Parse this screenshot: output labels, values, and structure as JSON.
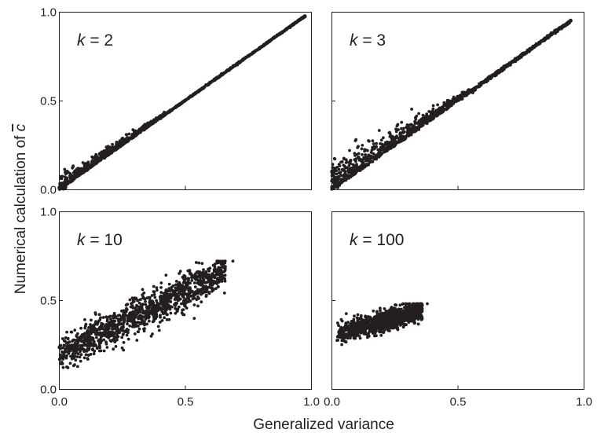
{
  "chart_data": {
    "type": "scatter",
    "layout": "2x2 panels, shared axes",
    "xlabel": "Generalized variance",
    "ylabel": "Numerical calculation of ",
    "ylabel_symbol": "c",
    "ylabel_symbol_overline": true,
    "xlim": [
      0,
      1
    ],
    "ylim": [
      0,
      1
    ],
    "xticks": [
      "0.0",
      "0.5",
      "1.0"
    ],
    "yticks": [
      "0.0",
      "0.5",
      "1.0"
    ],
    "grid": false,
    "marker_color": "#231f20",
    "panels": [
      {
        "label_var": "k",
        "label_rest": " = 2",
        "row": 0,
        "col": 0,
        "x_range": [
          0.0,
          0.98
        ],
        "y_range": [
          0.0,
          0.98
        ],
        "relation": "points on the line y = x with positive scatter above it for x < 0.4",
        "samples": [
          {
            "x": 0.02,
            "y": 0.03
          },
          {
            "x": 0.05,
            "y": 0.1
          },
          {
            "x": 0.1,
            "y": 0.16
          },
          {
            "x": 0.2,
            "y": 0.28
          },
          {
            "x": 0.3,
            "y": 0.36
          },
          {
            "x": 0.5,
            "y": 0.5
          },
          {
            "x": 0.75,
            "y": 0.75
          },
          {
            "x": 0.98,
            "y": 0.98
          }
        ]
      },
      {
        "label_var": "k",
        "label_rest": " = 3",
        "row": 0,
        "col": 1,
        "x_range": [
          0.0,
          0.95
        ],
        "y_range": [
          0.0,
          0.96
        ],
        "relation": "points along y = x with wider scatter above the line for x < 0.5",
        "samples": [
          {
            "x": 0.02,
            "y": 0.05
          },
          {
            "x": 0.05,
            "y": 0.15
          },
          {
            "x": 0.1,
            "y": 0.28
          },
          {
            "x": 0.2,
            "y": 0.36
          },
          {
            "x": 0.3,
            "y": 0.42
          },
          {
            "x": 0.5,
            "y": 0.55
          },
          {
            "x": 0.75,
            "y": 0.77
          },
          {
            "x": 0.95,
            "y": 0.96
          }
        ]
      },
      {
        "label_var": "k",
        "label_rest": " = 10",
        "row": 1,
        "col": 0,
        "x_range": [
          0.0,
          0.7
        ],
        "y_range": [
          0.12,
          0.72
        ],
        "relation": "y ≈ 0.19 + 0.72x with noise about ±0.07",
        "samples": [
          {
            "x": 0.0,
            "y": 0.19
          },
          {
            "x": 0.05,
            "y": 0.16
          },
          {
            "x": 0.1,
            "y": 0.27
          },
          {
            "x": 0.2,
            "y": 0.33
          },
          {
            "x": 0.3,
            "y": 0.4
          },
          {
            "x": 0.4,
            "y": 0.47
          },
          {
            "x": 0.5,
            "y": 0.55
          },
          {
            "x": 0.6,
            "y": 0.63
          },
          {
            "x": 0.7,
            "y": 0.72
          }
        ]
      },
      {
        "label_var": "k",
        "label_rest": " = 100",
        "row": 1,
        "col": 1,
        "x_range": [
          0.02,
          0.38
        ],
        "y_range": [
          0.25,
          0.48
        ],
        "relation": "tight cluster, y ≈ 0.30 + 0.40x with noise about ±0.04",
        "samples": [
          {
            "x": 0.02,
            "y": 0.3
          },
          {
            "x": 0.05,
            "y": 0.33
          },
          {
            "x": 0.1,
            "y": 0.34
          },
          {
            "x": 0.2,
            "y": 0.37
          },
          {
            "x": 0.3,
            "y": 0.42
          },
          {
            "x": 0.38,
            "y": 0.48
          }
        ]
      }
    ]
  }
}
